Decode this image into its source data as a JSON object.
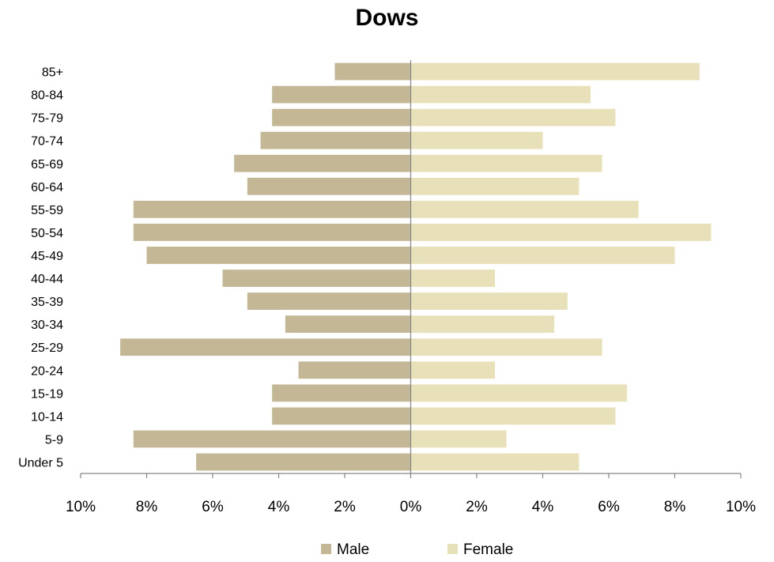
{
  "chart_data": {
    "type": "bar",
    "orientation": "horizontal",
    "subtype": "population-pyramid",
    "title": "Dows",
    "categories": [
      "Under 5",
      "5-9",
      "10-14",
      "15-19",
      "20-24",
      "25-29",
      "30-34",
      "35-39",
      "40-44",
      "45-49",
      "50-54",
      "55-59",
      "60-64",
      "65-69",
      "70-74",
      "75-79",
      "80-84",
      "85+"
    ],
    "series": [
      {
        "name": "Male",
        "color": "#c4b796",
        "values": [
          6.5,
          8.4,
          4.2,
          4.2,
          3.4,
          8.8,
          3.8,
          4.95,
          5.7,
          8.0,
          8.4,
          8.4,
          4.95,
          5.35,
          4.55,
          4.2,
          4.2,
          2.3
        ]
      },
      {
        "name": "Female",
        "color": "#e8e0b8",
        "values": [
          5.1,
          2.9,
          6.2,
          6.55,
          2.55,
          5.8,
          4.35,
          4.75,
          2.55,
          8.0,
          9.1,
          6.9,
          5.1,
          5.8,
          4.0,
          6.2,
          5.45,
          8.75
        ]
      }
    ],
    "xlim": [
      -10,
      10
    ],
    "xticks": [
      -10,
      -8,
      -6,
      -4,
      -2,
      0,
      2,
      4,
      6,
      8,
      10
    ],
    "xtick_labels": [
      "10%",
      "8%",
      "6%",
      "4%",
      "2%",
      "0%",
      "2%",
      "4%",
      "6%",
      "8%",
      "10%"
    ],
    "grid": false,
    "legend": {
      "position": "bottom",
      "entries": [
        "Male",
        "Female"
      ]
    },
    "axis_color": "#868686"
  }
}
